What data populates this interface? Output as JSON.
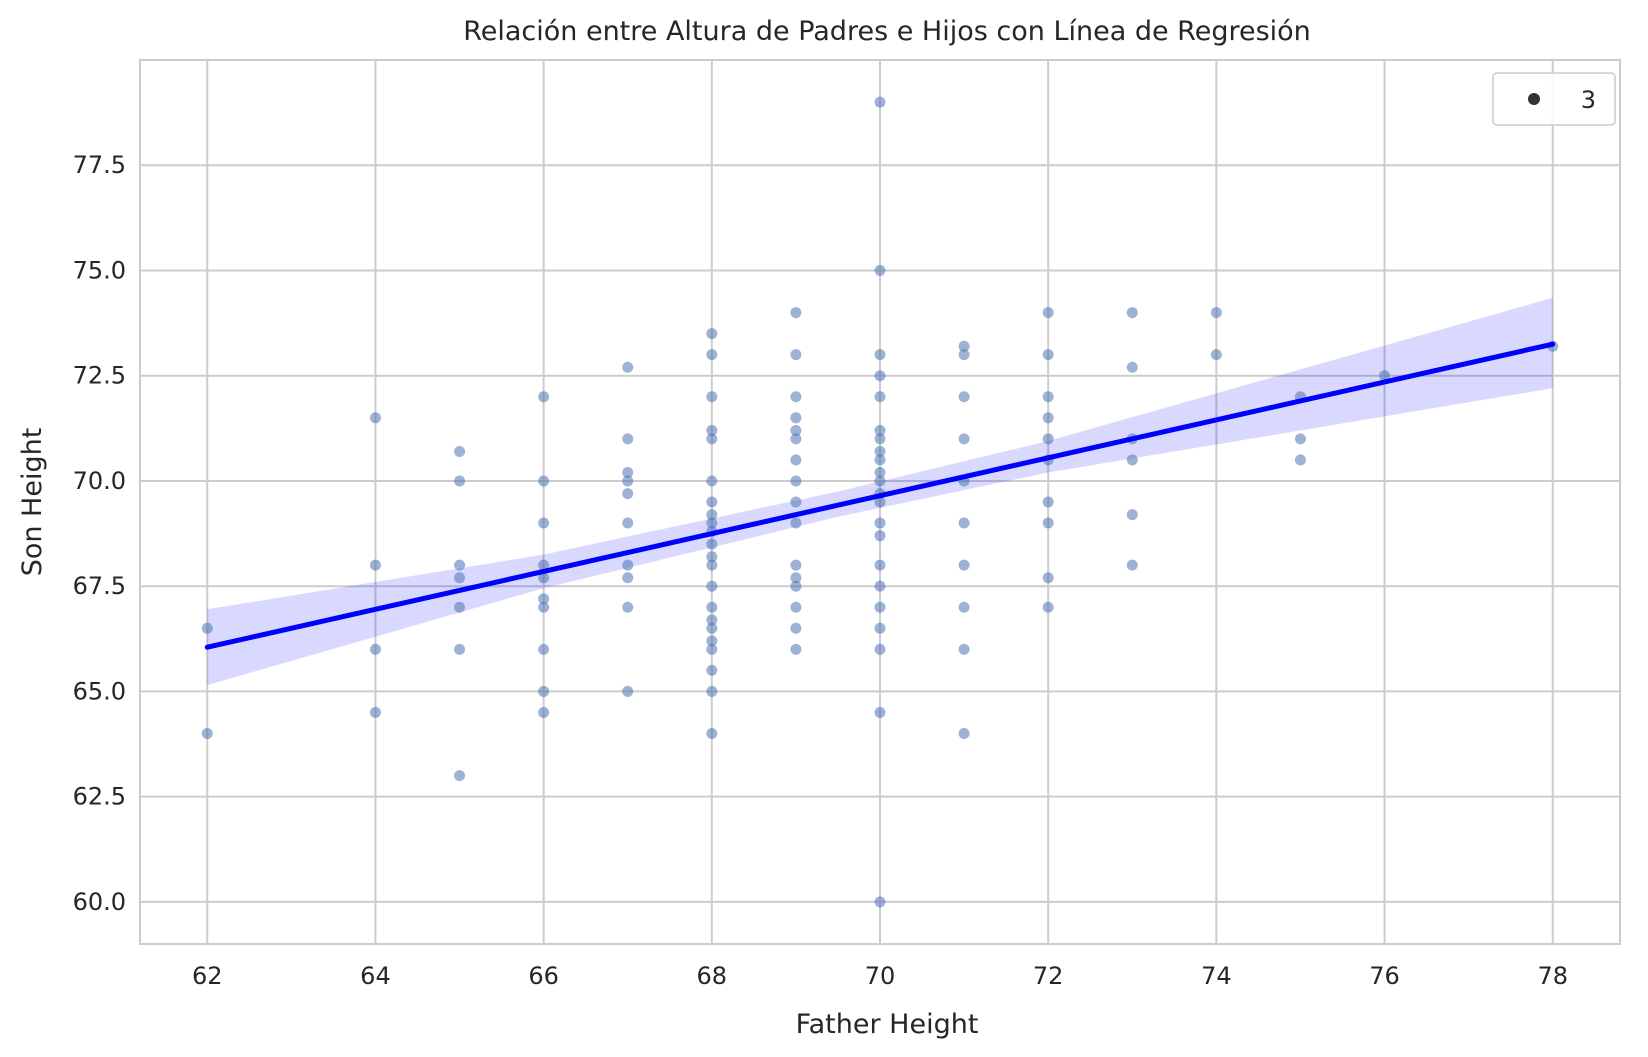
{
  "chart_data": {
    "type": "scatter",
    "title": "Relación entre Altura de Padres e Hijos con Línea de Regresión",
    "xlabel": "Father Height",
    "ylabel": "Son Height",
    "xlim": [
      61.2,
      78.8
    ],
    "ylim": [
      59.0,
      80.0
    ],
    "xticks": [
      62,
      64,
      66,
      68,
      70,
      72,
      74,
      76,
      78
    ],
    "yticks": [
      60.0,
      62.5,
      65.0,
      67.5,
      70.0,
      72.5,
      75.0,
      77.5
    ],
    "grid": true,
    "legend": {
      "placement": "top-right",
      "entries": [
        {
          "label": "3"
        }
      ]
    },
    "colors": {
      "points": "#4c72b0",
      "regression_line": "#0000ff",
      "confidence_band": "#0000ff",
      "grid": "#cccccc",
      "legend_marker": "#333333"
    },
    "points": [
      [
        62,
        66.5
      ],
      [
        62,
        64
      ],
      [
        64,
        71.5
      ],
      [
        64,
        68
      ],
      [
        64,
        66
      ],
      [
        64,
        64.5
      ],
      [
        65,
        70.7
      ],
      [
        65,
        70
      ],
      [
        65,
        68
      ],
      [
        65,
        67.7
      ],
      [
        65,
        67
      ],
      [
        65,
        66
      ],
      [
        65,
        63
      ],
      [
        66,
        72
      ],
      [
        66,
        70
      ],
      [
        66,
        69
      ],
      [
        66,
        68
      ],
      [
        66,
        67.7
      ],
      [
        66,
        67.2
      ],
      [
        66,
        67
      ],
      [
        66,
        66
      ],
      [
        66,
        65
      ],
      [
        66,
        64.5
      ],
      [
        67,
        72.7
      ],
      [
        67,
        71
      ],
      [
        67,
        70.2
      ],
      [
        67,
        70
      ],
      [
        67,
        69.7
      ],
      [
        67,
        69
      ],
      [
        67,
        68
      ],
      [
        67,
        67.7
      ],
      [
        67,
        67
      ],
      [
        67,
        65
      ],
      [
        68,
        73.5
      ],
      [
        68,
        73
      ],
      [
        68,
        72
      ],
      [
        68,
        71.2
      ],
      [
        68,
        71
      ],
      [
        68,
        70
      ],
      [
        68,
        69.5
      ],
      [
        68,
        69.2
      ],
      [
        68,
        69
      ],
      [
        68,
        68.8
      ],
      [
        68,
        68.5
      ],
      [
        68,
        68.2
      ],
      [
        68,
        68
      ],
      [
        68,
        67.5
      ],
      [
        68,
        67
      ],
      [
        68,
        66.7
      ],
      [
        68,
        66.5
      ],
      [
        68,
        66.2
      ],
      [
        68,
        66
      ],
      [
        68,
        65.5
      ],
      [
        68,
        65
      ],
      [
        68,
        64
      ],
      [
        69,
        74
      ],
      [
        69,
        73
      ],
      [
        69,
        72
      ],
      [
        69,
        71.5
      ],
      [
        69,
        71.2
      ],
      [
        69,
        71
      ],
      [
        69,
        70.5
      ],
      [
        69,
        70
      ],
      [
        69,
        69.5
      ],
      [
        69,
        69
      ],
      [
        69,
        68
      ],
      [
        69,
        67.7
      ],
      [
        69,
        67.5
      ],
      [
        69,
        67
      ],
      [
        69,
        66.5
      ],
      [
        69,
        66
      ],
      [
        70,
        79
      ],
      [
        70,
        75
      ],
      [
        70,
        73
      ],
      [
        70,
        72.5
      ],
      [
        70,
        72
      ],
      [
        70,
        71.2
      ],
      [
        70,
        71
      ],
      [
        70,
        70.7
      ],
      [
        70,
        70.5
      ],
      [
        70,
        70.2
      ],
      [
        70,
        70
      ],
      [
        70,
        69.7
      ],
      [
        70,
        69.5
      ],
      [
        70,
        69
      ],
      [
        70,
        68.7
      ],
      [
        70,
        68
      ],
      [
        70,
        67.5
      ],
      [
        70,
        67
      ],
      [
        70,
        66.5
      ],
      [
        70,
        66
      ],
      [
        70,
        64.5
      ],
      [
        70,
        60
      ],
      [
        71,
        73.2
      ],
      [
        71,
        73
      ],
      [
        71,
        72
      ],
      [
        71,
        71
      ],
      [
        71,
        70
      ],
      [
        71,
        69
      ],
      [
        71,
        68
      ],
      [
        71,
        67
      ],
      [
        71,
        66
      ],
      [
        71,
        64
      ],
      [
        72,
        74
      ],
      [
        72,
        73
      ],
      [
        72,
        72
      ],
      [
        72,
        71.5
      ],
      [
        72,
        71
      ],
      [
        72,
        70.5
      ],
      [
        72,
        69.5
      ],
      [
        72,
        69
      ],
      [
        72,
        67.7
      ],
      [
        72,
        67
      ],
      [
        73,
        74
      ],
      [
        73,
        72.7
      ],
      [
        73,
        71
      ],
      [
        73,
        70.5
      ],
      [
        73,
        69.2
      ],
      [
        73,
        68
      ],
      [
        74,
        74
      ],
      [
        74,
        73
      ],
      [
        75,
        72
      ],
      [
        75,
        71
      ],
      [
        75,
        70.5
      ],
      [
        76,
        72.5
      ],
      [
        78,
        73.2
      ]
    ],
    "regression": {
      "x": [
        62,
        78
      ],
      "y": [
        66.05,
        73.25
      ],
      "band": [
        {
          "x": 62,
          "lower": 65.15,
          "upper": 66.95
        },
        {
          "x": 66,
          "lower": 67.45,
          "upper": 68.25
        },
        {
          "x": 69.5,
          "lower": 69.15,
          "upper": 69.75
        },
        {
          "x": 72,
          "lower": 70.2,
          "upper": 70.95
        },
        {
          "x": 78,
          "lower": 72.2,
          "upper": 74.35
        }
      ]
    }
  }
}
